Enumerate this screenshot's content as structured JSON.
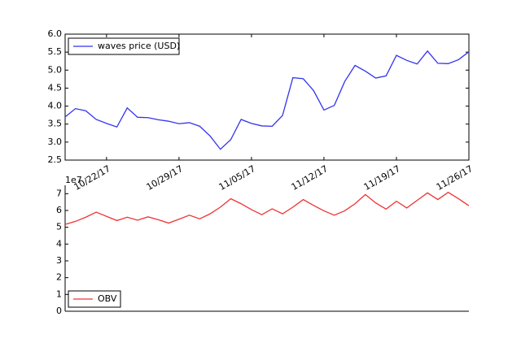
{
  "chart_data": [
    {
      "type": "line",
      "x": [
        "10/18/17",
        "10/19/17",
        "10/20/17",
        "10/21/17",
        "10/22/17",
        "10/23/17",
        "10/24/17",
        "10/25/17",
        "10/26/17",
        "10/27/17",
        "10/28/17",
        "10/29/17",
        "10/30/17",
        "10/31/17",
        "11/01/17",
        "11/02/17",
        "11/03/17",
        "11/04/17",
        "11/05/17",
        "11/06/17",
        "11/07/17",
        "11/08/17",
        "11/09/17",
        "11/10/17",
        "11/11/17",
        "11/12/17",
        "11/13/17",
        "11/14/17",
        "11/15/17",
        "11/16/17",
        "11/17/17",
        "11/18/17",
        "11/19/17",
        "11/20/17",
        "11/21/17",
        "11/22/17",
        "11/23/17",
        "11/24/17",
        "11/25/17",
        "11/26/17"
      ],
      "series": [
        {
          "name": "waves price (USD)",
          "color": "#3333ee",
          "values": [
            3.7,
            3.93,
            3.87,
            3.63,
            3.52,
            3.42,
            3.95,
            3.69,
            3.68,
            3.62,
            3.58,
            3.51,
            3.54,
            3.44,
            3.17,
            2.8,
            3.07,
            3.63,
            3.52,
            3.45,
            3.44,
            3.74,
            4.79,
            4.76,
            4.43,
            3.89,
            4.02,
            4.68,
            5.13,
            4.97,
            4.78,
            4.84,
            5.41,
            5.27,
            5.17,
            5.53,
            5.19,
            5.18,
            5.29,
            5.51
          ]
        }
      ],
      "xlim": [
        "10/18/17",
        "11/26/17"
      ],
      "xticks": [
        "10/22/17",
        "10/29/17",
        "11/05/17",
        "11/12/17",
        "11/19/17",
        "11/26/17"
      ],
      "ylim": [
        2.5,
        6
      ],
      "yticks": [
        2.5,
        {
          "value": 3,
          "label": "3.0"
        },
        3.5,
        {
          "value": 4,
          "label": "4.0"
        },
        4.5,
        {
          "value": 5,
          "label": "5.0"
        },
        5.5,
        {
          "value": 6,
          "label": "6.0"
        }
      ],
      "legend": "upper left"
    },
    {
      "type": "line",
      "x": [
        "10/18/17",
        "10/19/17",
        "10/20/17",
        "10/21/17",
        "10/22/17",
        "10/23/17",
        "10/24/17",
        "10/25/17",
        "10/26/17",
        "10/27/17",
        "10/28/17",
        "10/29/17",
        "10/30/17",
        "10/31/17",
        "11/01/17",
        "11/02/17",
        "11/03/17",
        "11/04/17",
        "11/05/17",
        "11/06/17",
        "11/07/17",
        "11/08/17",
        "11/09/17",
        "11/10/17",
        "11/11/17",
        "11/12/17",
        "11/13/17",
        "11/14/17",
        "11/15/17",
        "11/16/17",
        "11/17/17",
        "11/18/17",
        "11/19/17",
        "11/20/17",
        "11/21/17",
        "11/22/17",
        "11/23/17",
        "11/24/17",
        "11/25/17",
        "11/26/17"
      ],
      "series": [
        {
          "name": "OBV",
          "color": "#ee3333",
          "values": [
            5.17,
            5.35,
            5.6,
            5.9,
            5.65,
            5.4,
            5.6,
            5.42,
            5.62,
            5.45,
            5.25,
            5.48,
            5.72,
            5.5,
            5.8,
            6.2,
            6.7,
            6.4,
            6.05,
            5.75,
            6.1,
            5.8,
            6.2,
            6.65,
            6.3,
            5.98,
            5.72,
            5.98,
            6.4,
            6.95,
            6.45,
            6.08,
            6.55,
            6.15,
            6.6,
            7.05,
            6.65,
            7.08,
            6.7,
            6.28
          ]
        }
      ],
      "xlim": [
        "10/18/17",
        "11/26/17"
      ],
      "ylim": [
        0,
        7.5
      ],
      "yticks": [
        0,
        1,
        2,
        3,
        4,
        5,
        6,
        7
      ],
      "offset_label": "1e7",
      "legend": "lower left"
    }
  ]
}
